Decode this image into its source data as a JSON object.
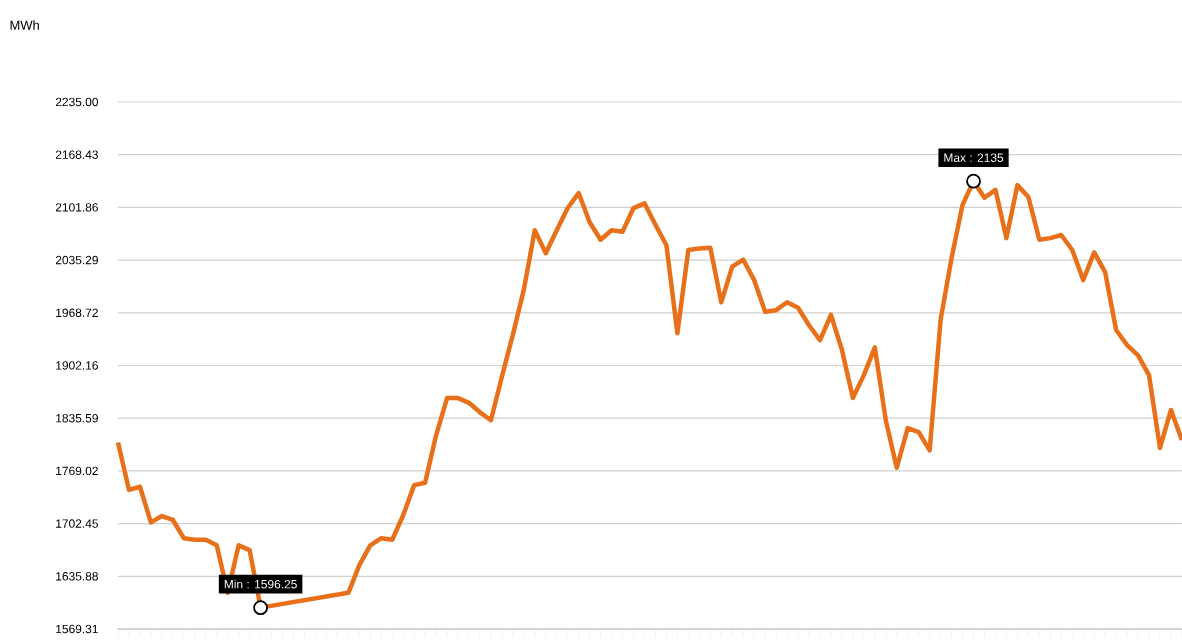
{
  "chart_data": {
    "type": "line",
    "categories": [
      null,
      null,
      null,
      null,
      null,
      null,
      null,
      null,
      null,
      null,
      null,
      null,
      null,
      null,
      null,
      null,
      null,
      null,
      null,
      null,
      null,
      null,
      null,
      null,
      null,
      null,
      null,
      null,
      null,
      null,
      null,
      null,
      null,
      null,
      null,
      null,
      null,
      null,
      null,
      null,
      null,
      null,
      null,
      null,
      null,
      null,
      null,
      null,
      null,
      null,
      null,
      null,
      null,
      null,
      null,
      null,
      null,
      null,
      null,
      null,
      null,
      null,
      null,
      null,
      null,
      null,
      null,
      null,
      null,
      null,
      null,
      null,
      null,
      null,
      null,
      null,
      null,
      null,
      null,
      null,
      null,
      null,
      null,
      null,
      null,
      null,
      null,
      null,
      null,
      null,
      null,
      null,
      null,
      null,
      null,
      null,
      null,
      null
    ],
    "series": [
      {
        "color": "#e8701a",
        "values": [
          1805,
          1745,
          1749,
          1704,
          1712,
          1707,
          1684,
          1682,
          1682,
          1675,
          1615,
          1675,
          1669,
          1596.25,
          null,
          null,
          null,
          null,
          null,
          null,
          null,
          1615,
          1650,
          1675,
          1684,
          1682,
          1713,
          1751,
          1754,
          1814,
          1861,
          1861,
          1855,
          1843,
          1833,
          1888,
          1941,
          1998,
          2073,
          2044,
          2073,
          2101,
          2120,
          2083,
          2061,
          2073,
          2071,
          2101,
          2107,
          2080,
          2054,
          1943,
          2048,
          2050,
          2051,
          1982,
          2027,
          2036,
          2010,
          1970,
          1972,
          1982,
          1975,
          1953,
          1934,
          1966,
          1922,
          1861,
          1890,
          1925,
          1833,
          1773,
          1823,
          1818,
          1795,
          1960,
          2038,
          2105,
          2135,
          2114,
          2124,
          2063,
          2130,
          2115,
          2061,
          2063,
          2067,
          2048,
          2010,
          2045,
          2020,
          1947,
          1928,
          1915,
          1890,
          1798,
          1846,
          1808
        ]
      },
      {
        "type": "scatter",
        "color": "#ffffff",
        "values": [
          null,
          null,
          null,
          null,
          null,
          null,
          null,
          null,
          null,
          null,
          null,
          null,
          null,
          1596.25,
          null,
          null,
          null,
          null,
          null,
          null,
          null,
          null,
          null,
          null,
          null,
          null,
          null,
          null,
          null,
          null,
          null,
          null,
          null,
          null,
          null,
          null,
          null,
          null,
          null,
          null,
          null,
          null,
          null,
          null,
          null,
          null,
          null,
          null,
          null,
          null,
          null,
          null,
          null,
          null,
          null,
          null,
          null,
          null,
          null,
          null,
          null,
          null,
          null,
          null,
          null,
          null,
          null,
          null,
          null,
          null,
          null,
          null,
          null,
          null,
          null,
          null,
          null,
          null,
          2135,
          null,
          null,
          null,
          null,
          null,
          null,
          null,
          null,
          null,
          null,
          null,
          null,
          null,
          null,
          null,
          null,
          null,
          null,
          null
        ]
      }
    ],
    "ylim": [
      1569.31,
      2235.0
    ],
    "yticks": [
      {
        "value": 1569.31,
        "label": "1569.31"
      },
      {
        "value": 1635.88,
        "label": "1635.88"
      },
      {
        "value": 1702.45,
        "label": "1702.45"
      },
      {
        "value": 1769.02,
        "label": "1769.02"
      },
      {
        "value": 1835.59,
        "label": "1835.59"
      },
      {
        "value": 1902.16,
        "label": "1902.16"
      },
      {
        "value": 1968.72,
        "label": "1968.72"
      },
      {
        "value": 2035.29,
        "label": "2035.29"
      },
      {
        "value": 2101.86,
        "label": "2101.86"
      },
      {
        "value": 2168.43,
        "label": "2168.43"
      },
      {
        "value": 2235.0,
        "label": "2235.00"
      }
    ],
    "grid": "y",
    "annotations": [
      "MWh",
      "Min : 1596.25",
      "Max : 2135"
    ]
  }
}
